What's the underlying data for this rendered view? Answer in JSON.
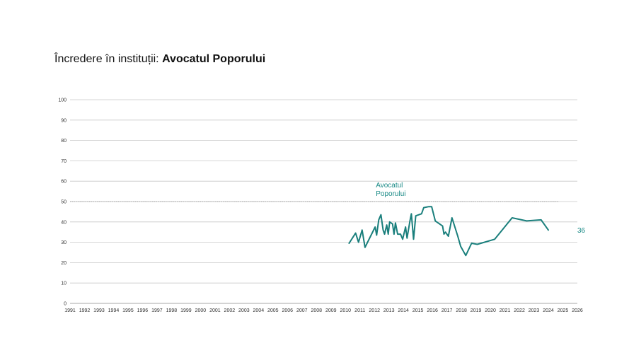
{
  "page": {
    "title_prefix": "Încredere în instituții: ",
    "title_bold": "Avocatul Poporului"
  },
  "colors": {
    "series": "#1a7f7c",
    "grid": "#c8c8c8",
    "reference_line": "#9a9a9a",
    "annotation": "#1a8a86"
  },
  "chart_data": {
    "type": "line",
    "title": "Încredere în instituții: Avocatul Poporului",
    "xlabel": "",
    "ylabel": "",
    "xlim": [
      1991,
      2026
    ],
    "ylim": [
      0,
      100
    ],
    "x_ticks": [
      "1991",
      "1992",
      "1993",
      "1994",
      "1995",
      "1996",
      "1997",
      "1998",
      "1999",
      "2000",
      "2001",
      "2002",
      "2003",
      "2004",
      "2005",
      "2006",
      "2007",
      "2008",
      "2009",
      "2010",
      "2011",
      "2012",
      "2013",
      "2014",
      "2015",
      "2016",
      "2017",
      "2018",
      "2019",
      "2020",
      "2021",
      "2022",
      "2023",
      "2024",
      "2025",
      "2026"
    ],
    "y_ticks": [
      0,
      10,
      20,
      30,
      40,
      50,
      60,
      70,
      80,
      90,
      100
    ],
    "grid": true,
    "reference_line": 50,
    "series": [
      {
        "name": "Avocatul Poporului",
        "label": "Avocatul Poporului",
        "end_label": "36",
        "points": [
          [
            2010.25,
            29.5
          ],
          [
            2010.7,
            34.5
          ],
          [
            2010.9,
            30
          ],
          [
            2011.15,
            36
          ],
          [
            2011.35,
            27.5
          ],
          [
            2012.05,
            37.5
          ],
          [
            2012.15,
            33.5
          ],
          [
            2012.3,
            41
          ],
          [
            2012.45,
            43.5
          ],
          [
            2012.6,
            36
          ],
          [
            2012.7,
            34
          ],
          [
            2012.85,
            38.5
          ],
          [
            2012.95,
            34
          ],
          [
            2013.05,
            40
          ],
          [
            2013.25,
            39
          ],
          [
            2013.35,
            34
          ],
          [
            2013.45,
            39.5
          ],
          [
            2013.6,
            34
          ],
          [
            2013.8,
            34
          ],
          [
            2013.95,
            31.5
          ],
          [
            2014.15,
            37.5
          ],
          [
            2014.25,
            32
          ],
          [
            2014.45,
            40.5
          ],
          [
            2014.55,
            44
          ],
          [
            2014.7,
            31.5
          ],
          [
            2014.85,
            43
          ],
          [
            2015.25,
            44
          ],
          [
            2015.4,
            47
          ],
          [
            2015.75,
            47.5
          ],
          [
            2015.95,
            47.5
          ],
          [
            2016.2,
            40.5
          ],
          [
            2016.7,
            38
          ],
          [
            2016.8,
            34
          ],
          [
            2016.9,
            35
          ],
          [
            2017.1,
            33
          ],
          [
            2017.35,
            42
          ],
          [
            2017.75,
            33
          ],
          [
            2017.95,
            28
          ],
          [
            2018.3,
            23.5
          ],
          [
            2018.7,
            29.5
          ],
          [
            2019.1,
            29
          ],
          [
            2020.3,
            31.5
          ],
          [
            2021.5,
            42
          ],
          [
            2022.5,
            40.5
          ],
          [
            2023.5,
            41
          ],
          [
            2024.0,
            36
          ]
        ]
      }
    ]
  }
}
